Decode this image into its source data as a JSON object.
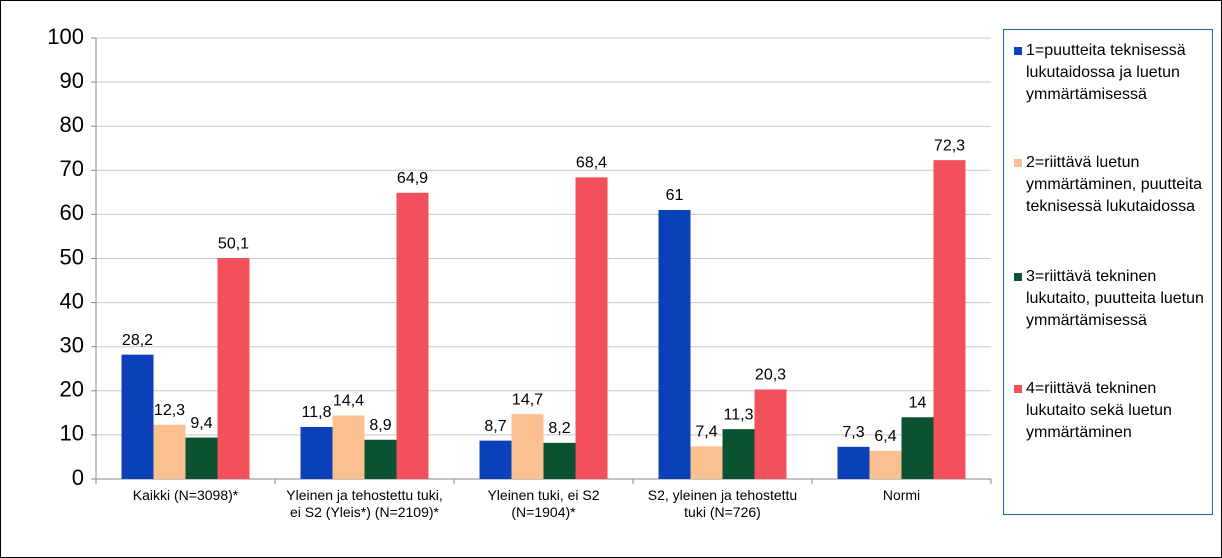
{
  "chart_data": {
    "type": "bar",
    "categories": [
      "Kaikki (N=3098)*",
      "Yleinen ja tehostettu tuki, ei S2 (Yleis*) (N=2109)*",
      "Yleinen tuki, ei S2 (N=1904)*",
      "S2, yleinen ja tehostettu tuki (N=726)",
      "Normi"
    ],
    "series": [
      {
        "name": "1=puutteita teknisessä lukutaidossa ja luetun ymmärtämisessä",
        "color": "#0b41b8",
        "values": [
          28.2,
          11.8,
          8.7,
          61,
          7.3
        ],
        "value_labels": [
          "28,2",
          "11,8",
          "8,7",
          "61",
          "7,3"
        ]
      },
      {
        "name": "2=riittävä luetun ymmärtäminen, puutteita teknisessä lukutaidossa",
        "color": "#fac08f",
        "values": [
          12.3,
          14.4,
          14.7,
          7.4,
          6.4
        ],
        "value_labels": [
          "12,3",
          "14,4",
          "14,7",
          "7,4",
          "6,4"
        ]
      },
      {
        "name": "3=riittävä tekninen lukutaito, puutteita luetun ymmärtämisessä",
        "color": "#0a5232",
        "values": [
          9.4,
          8.9,
          8.2,
          11.3,
          14
        ],
        "value_labels": [
          "9,4",
          "8,9",
          "8,2",
          "11,3",
          "14"
        ]
      },
      {
        "name": "4=riittävä tekninen lukutaito sekä luetun ymmärtäminen",
        "color": "#f2505a",
        "values": [
          50.1,
          64.9,
          68.4,
          20.3,
          72.3
        ],
        "value_labels": [
          "50,1",
          "64,9",
          "68,4",
          "20,3",
          "72,3"
        ]
      }
    ],
    "ylim": [
      0,
      100
    ],
    "yticks": [
      0,
      10,
      20,
      30,
      40,
      50,
      60,
      70,
      80,
      90,
      100
    ],
    "grid": true,
    "legend": "right"
  }
}
